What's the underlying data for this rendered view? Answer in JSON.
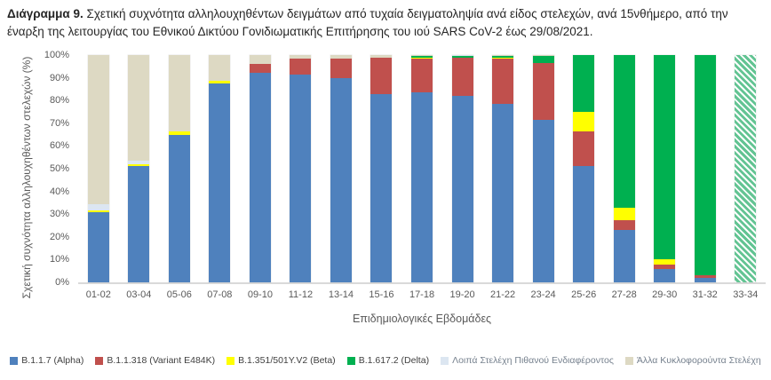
{
  "title": {
    "bold": "Διάγραμμα 9.",
    "rest": " Σχετική συχνότητα αλληλουχηθέντων δειγμάτων από τυχαία δειγματοληψία ανά είδος στελεχών, ανά 15νθήμερο, από την έναρξη της λειτουργίας του Εθνικού Δικτύου Γονιδιωματικής Επιτήρησης του ιού SARS CoV-2 έως 29/08/2021."
  },
  "chart_data": {
    "type": "bar",
    "subtype": "stacked-100-percent",
    "title": "Διάγραμμα 9. Σχετική συχνότητα αλληλουχηθέντων δειγμάτων από τυχαία δειγματοληψία ανά είδος στελεχών, ανά 15νθήμερο, από την έναρξη της λειτουργίας του Εθνικού Δικτύου Γονιδιωματικής Επιτήρησης του ιού SARS CoV-2 έως 29/08/2021.",
    "xlabel": "Επιδημιολογικές Εβδομάδες",
    "ylabel": "Σχετική συχνότητα αλληλουχηθέντων στελεχών (%)",
    "ylim": [
      0,
      100
    ],
    "grid": false,
    "legend_position": "bottom",
    "yticks": [
      "0%",
      "10%",
      "20%",
      "30%",
      "40%",
      "50%",
      "60%",
      "70%",
      "80%",
      "90%",
      "100%"
    ],
    "categories": [
      "01-02",
      "03-04",
      "05-06",
      "07-08",
      "09-10",
      "11-12",
      "13-14",
      "15-16",
      "17-18",
      "19-20",
      "21-22",
      "23-24",
      "25-26",
      "27-28",
      "29-30",
      "31-32",
      "33-34"
    ],
    "series": [
      {
        "key": "alpha",
        "name": "B.1.1.7 (Alpha)",
        "color": "#4F81BD",
        "values": [
          31,
          51,
          65,
          87.5,
          92,
          91.5,
          90,
          83,
          83.5,
          82,
          78.5,
          71.5,
          51,
          23,
          6,
          2,
          0
        ]
      },
      {
        "key": "e484k",
        "name": "B.1.1.318 (Variant E484K)",
        "color": "#C0504D",
        "values": [
          0,
          0,
          0,
          0,
          4,
          7,
          8.5,
          16,
          15,
          17,
          20,
          25,
          15.5,
          4.5,
          2,
          1,
          0
        ]
      },
      {
        "key": "beta",
        "name": "B.1.351/501Y.V2 (Beta)",
        "color": "#FFFF00",
        "values": [
          0.5,
          1,
          1.5,
          1,
          0,
          0,
          0,
          0,
          0.5,
          0,
          0.5,
          0,
          8.5,
          5.5,
          2,
          0,
          0
        ]
      },
      {
        "key": "delta",
        "name": "B.1.617.2 (Delta)",
        "color": "#00B050",
        "values": [
          0,
          0,
          0,
          0,
          0,
          0,
          0,
          0,
          0.5,
          0.5,
          0.5,
          3,
          25,
          67,
          90,
          97,
          100
        ]
      },
      {
        "key": "other_interest",
        "name": "Λοιπά Στελέχη Πιθανού Ενδιαφέροντος",
        "color": "#DCE6F1",
        "values": [
          3,
          1.5,
          0,
          0,
          0,
          0,
          0,
          0,
          0,
          0.5,
          0,
          0,
          0,
          0,
          0,
          0,
          0
        ]
      },
      {
        "key": "other_circulating",
        "name": "Άλλα Κυκλοφορούντα Στελέχη",
        "color": "#DDD9C3",
        "values": [
          65.5,
          46.5,
          33.5,
          11.5,
          4,
          1.5,
          1.5,
          1,
          0.5,
          0,
          0.5,
          0.5,
          0,
          0,
          0,
          0,
          0
        ]
      }
    ],
    "hatched": {
      "category": "33-34",
      "series_key": "delta",
      "stripe_color": "#63C493",
      "note": "last fortnight drawn as diagonal green hatch"
    }
  }
}
